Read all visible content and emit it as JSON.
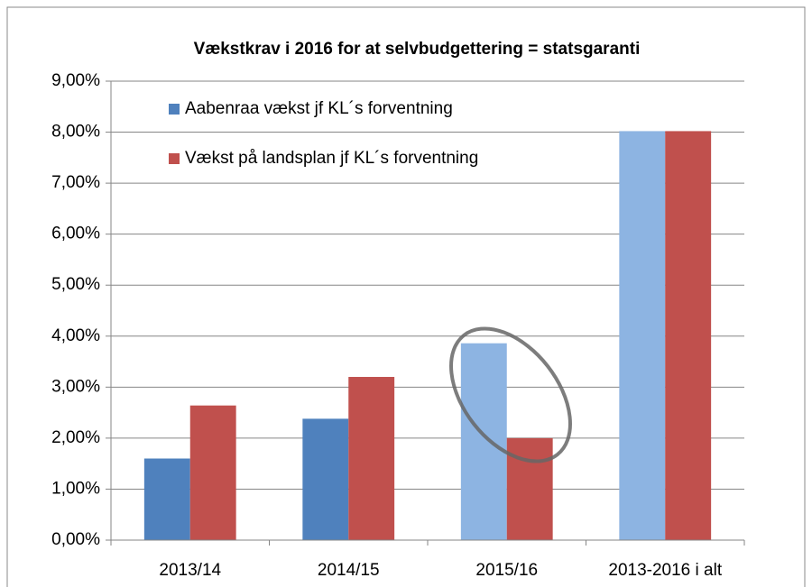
{
  "chart_data": {
    "type": "bar",
    "title": "Vækstkrav i 2016 for at selvbudgettering = statsgaranti",
    "categories": [
      "2013/14",
      "2014/15",
      "2015/16",
      "2013-2016 i alt"
    ],
    "series": [
      {
        "name": "Aabenraa vækst jf KL´s forventning",
        "color": "#4f81bd",
        "colors": [
          "#4f81bd",
          "#4f81bd",
          "#8db4e2",
          "#8db4e2"
        ],
        "values": [
          1.6,
          2.38,
          3.86,
          8.02
        ]
      },
      {
        "name": "Vækst på landsplan jf KL´s forventning",
        "color": "#c0504d",
        "values": [
          2.64,
          3.2,
          2.0,
          8.02
        ]
      }
    ],
    "ylim": [
      0,
      9
    ],
    "yticks": [
      {
        "value": 0,
        "label": "0,00%"
      },
      {
        "value": 1,
        "label": "1,00%"
      },
      {
        "value": 2,
        "label": "2,00%"
      },
      {
        "value": 3,
        "label": "3,00%"
      },
      {
        "value": 4,
        "label": "4,00%"
      },
      {
        "value": 5,
        "label": "5,00%"
      },
      {
        "value": 6,
        "label": "6,00%"
      },
      {
        "value": 7,
        "label": "7,00%"
      },
      {
        "value": 8,
        "label": "8,00%"
      },
      {
        "value": 9,
        "label": "9,00%"
      }
    ],
    "grid": true,
    "legend": "top-left"
  }
}
